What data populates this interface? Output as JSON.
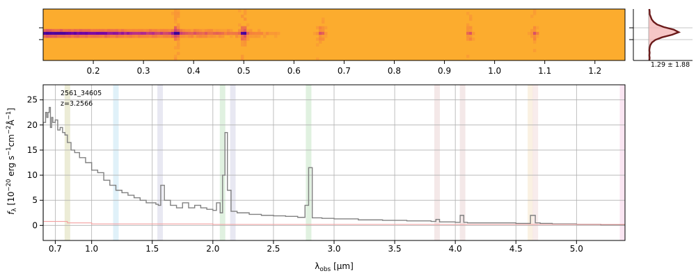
{
  "chart_data": [
    {
      "type": "heatmap",
      "panel": "2d-spectrum",
      "colormap": "plasma-inverted",
      "x_tick_labels": [
        "0.2",
        "0.3",
        "0.4",
        "0.5",
        "0.6",
        "0.7",
        "0.8",
        "0.9",
        "1.0",
        "1.1",
        "1.2"
      ],
      "x_ticks": [
        0.2,
        0.3,
        0.4,
        0.5,
        0.6,
        0.7,
        0.8,
        0.9,
        1.0,
        1.1,
        1.2
      ],
      "xlim": [
        0.1,
        1.26
      ],
      "trace_row_fraction": 0.45,
      "emission_features_x": [
        0.365,
        0.5,
        0.655,
        0.95,
        1.08
      ],
      "grid": false
    },
    {
      "type": "line",
      "panel": "spatial-profile",
      "annotation": "1.29 ± 1.88",
      "colors": {
        "fill": "#f4b8b8",
        "line": "#6b1a1a"
      },
      "profile_y": [
        0,
        0.05,
        0.1,
        0.15,
        0.2,
        0.25,
        0.3,
        0.35,
        0.4,
        0.45,
        0.5,
        0.55,
        0.6,
        0.65,
        0.7,
        0.75,
        0.8,
        0.85,
        0.9,
        0.95,
        1.0
      ],
      "profile_x": [
        0.02,
        0.03,
        0.03,
        0.06,
        0.09,
        0.15,
        0.25,
        0.45,
        0.75,
        0.9,
        0.7,
        0.4,
        0.2,
        0.1,
        0.05,
        0.03,
        0.02,
        0.03,
        0.02,
        0.03,
        0.02
      ]
    },
    {
      "type": "line",
      "panel": "1d-spectrum",
      "title": "",
      "annotations": [
        "2561_34605",
        "z=3.2566"
      ],
      "xlabel_prefix": "λ",
      "xlabel_sub": "obs",
      "xlabel_suffix": " [μm]",
      "ylabel": "f_λ [10^-20 erg s^-1 cm^-2 Å^-1]",
      "ylabel_parts": {
        "f": "f",
        "sub": "λ",
        "text1": " [10",
        "exp1": "−20",
        "text2": " erg s",
        "exp2": "−1",
        "text3": "cm",
        "exp3": "−2",
        "text4": "Å",
        "exp4": "−1",
        "text5": "]"
      },
      "x_tick_labels": [
        "0.7",
        "1.0",
        "1.5",
        "2.0",
        "2.5",
        "3.0",
        "3.5",
        "4.0",
        "4.5",
        "5.0"
      ],
      "x_ticks": [
        0.7,
        1.0,
        1.5,
        2.0,
        2.5,
        3.0,
        3.5,
        4.0,
        4.5,
        5.0
      ],
      "y_ticks": [
        0,
        5,
        10,
        15,
        20,
        25
      ],
      "y_tick_labels": [
        "0",
        "5",
        "10",
        "15",
        "20",
        "25"
      ],
      "xlim": [
        0.6,
        5.4
      ],
      "ylim": [
        -3,
        28
      ],
      "grid": true,
      "line_bands": [
        {
          "x": 0.8,
          "color": "#e6e6c8"
        },
        {
          "x": 1.2,
          "color": "#d6ecf7"
        },
        {
          "x": 1.565,
          "color": "#e0e0ee"
        },
        {
          "x": 2.08,
          "color": "#d6ecd6"
        },
        {
          "x": 2.165,
          "color": "#e0e0ee"
        },
        {
          "x": 2.79,
          "color": "#d6ecd6"
        },
        {
          "x": 3.85,
          "color": "#f0e0e0"
        },
        {
          "x": 4.06,
          "color": "#f0e0e0"
        },
        {
          "x": 4.62,
          "color": "#f8ecd8"
        },
        {
          "x": 4.66,
          "color": "#f5e6e6"
        },
        {
          "x": 5.38,
          "color": "#f8dcee"
        }
      ],
      "series": [
        {
          "color": "#808080",
          "x": [
            0.6,
            0.6,
            0.62,
            0.63,
            0.64,
            0.65,
            0.66,
            0.67,
            0.68,
            0.7,
            0.72,
            0.74,
            0.76,
            0.78,
            0.8,
            0.83,
            0.86,
            0.9,
            0.95,
            1.0,
            1.05,
            1.1,
            1.15,
            1.2,
            1.25,
            1.3,
            1.35,
            1.4,
            1.45,
            1.5,
            1.53,
            1.55,
            1.57,
            1.6,
            1.65,
            1.7,
            1.75,
            1.8,
            1.85,
            1.9,
            1.95,
            2.0,
            2.03,
            2.06,
            2.08,
            2.1,
            2.12,
            2.15,
            2.2,
            2.3,
            2.4,
            2.5,
            2.6,
            2.7,
            2.76,
            2.79,
            2.82,
            2.9,
            3.0,
            3.2,
            3.4,
            3.6,
            3.8,
            3.84,
            3.87,
            3.9,
            4.0,
            4.04,
            4.07,
            4.1,
            4.3,
            4.5,
            4.58,
            4.62,
            4.66,
            4.7,
            4.8,
            5.0,
            5.2,
            5.4
          ],
          "y": [
            0,
            20.5,
            22.5,
            21.5,
            22.5,
            23.5,
            19.5,
            21.5,
            20.5,
            21.0,
            19.0,
            19.5,
            18.5,
            18.0,
            16.5,
            15.0,
            14.5,
            13.5,
            12.5,
            11.0,
            10.5,
            9.0,
            8.0,
            7.0,
            6.5,
            6.0,
            5.5,
            5.0,
            4.5,
            4.5,
            4.2,
            4.0,
            8.0,
            5.0,
            4.0,
            3.5,
            4.5,
            3.5,
            4.0,
            3.5,
            3.2,
            3.0,
            4.5,
            2.5,
            10.0,
            18.5,
            7.0,
            2.8,
            2.5,
            2.2,
            2.0,
            1.9,
            1.8,
            1.6,
            4.0,
            11.5,
            1.5,
            1.4,
            1.3,
            1.1,
            1.0,
            0.9,
            0.8,
            1.2,
            0.7,
            0.7,
            0.6,
            2.0,
            0.6,
            0.5,
            0.5,
            0.4,
            0.4,
            2.0,
            0.5,
            0.4,
            0.3,
            0.2,
            0.1,
            0
          ]
        },
        {
          "color": "#f4a0a0",
          "x": [
            0.6,
            0.8,
            1.0,
            2.0,
            3.0,
            4.0,
            5.0,
            5.4
          ],
          "y": [
            0.8,
            0.5,
            0.3,
            0.2,
            0.2,
            0.2,
            0.2,
            0.2
          ]
        }
      ]
    }
  ]
}
